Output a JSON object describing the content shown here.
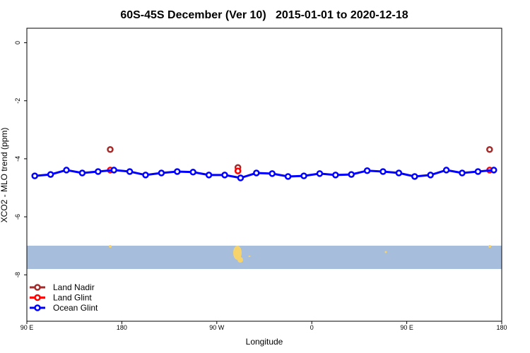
{
  "chart_data": {
    "type": "line",
    "title": "60S-45S December (Ver 10)   2015-01-01 to 2020-12-18",
    "x_label": "Longitude",
    "y_label": "XCO2 - MLO trend (ppm)",
    "xlim": [
      90,
      540
    ],
    "xticks": [
      {
        "value": 90,
        "label": "90 E"
      },
      {
        "value": 180,
        "label": "180"
      },
      {
        "value": 270,
        "label": "90 W"
      },
      {
        "value": 360,
        "label": "0"
      },
      {
        "value": 450,
        "label": "90 E"
      },
      {
        "value": 540,
        "label": "180"
      }
    ],
    "ylim": [
      -9.6,
      0.5
    ],
    "yticks": [
      0,
      -2,
      -4,
      -6,
      -8
    ],
    "legend": "bottomleft",
    "series": [
      {
        "name": "Land Nadir",
        "color": "#a52a2a",
        "x": [
          169,
          290,
          528.5
        ],
        "values": [
          -3.68,
          -4.3,
          -3.68
        ]
      },
      {
        "name": "Land Glint",
        "color": "#ff0000",
        "x": [
          169,
          290,
          528.5
        ],
        "values": [
          -4.39,
          -4.42,
          -4.39
        ]
      },
      {
        "name": "Ocean Glint",
        "color": "#0000ff",
        "x": [
          97.5,
          112.5,
          127.5,
          142.5,
          157.5,
          172.5,
          187.5,
          202.5,
          217.5,
          232.5,
          247.5,
          262.5,
          277.5,
          292.5,
          307.5,
          322.5,
          337.5,
          352.5,
          367.5,
          382.5,
          397.5,
          412.5,
          427.5,
          442.5,
          457.5,
          472.5,
          487.5,
          502.5,
          517.5,
          532.5
        ],
        "values": [
          -4.59,
          -4.54,
          -4.39,
          -4.49,
          -4.44,
          -4.39,
          -4.44,
          -4.56,
          -4.49,
          -4.44,
          -4.46,
          -4.56,
          -4.56,
          -4.66,
          -4.49,
          -4.51,
          -4.61,
          -4.59,
          -4.51,
          -4.56,
          -4.54,
          -4.41,
          -4.44,
          -4.49,
          -4.61,
          -4.56,
          -4.39,
          -4.49,
          -4.44,
          -4.39
        ]
      }
    ]
  }
}
